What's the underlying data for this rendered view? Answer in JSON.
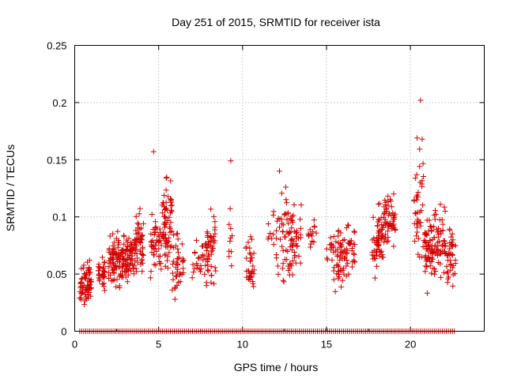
{
  "chart_data": {
    "type": "scatter",
    "title": "Day 251 of 2015, SRMTID for receiver ista",
    "xlabel": "GPS time / hours",
    "ylabel": "SRMTID / TECUs",
    "xlim": [
      0,
      24.4
    ],
    "ylim": [
      0,
      0.25
    ],
    "xticks": [
      0,
      5,
      10,
      15,
      20
    ],
    "yticks": [
      0,
      0.05,
      0.1,
      0.15,
      0.2,
      0.25
    ],
    "xtick_labels": [
      "0",
      "5",
      "10",
      "15",
      "20"
    ],
    "ytick_labels": [
      "0",
      "0.05",
      "0.1",
      "0.15",
      "0.2",
      "0.25"
    ],
    "grid": true,
    "marker": "+",
    "color": "#d40000",
    "series": [
      {
        "name": "SRMTID",
        "clusters": [
          {
            "x": [
              0.3,
              1.0
            ],
            "y": [
              0.015,
              0.068
            ],
            "n": 70
          },
          {
            "x": [
              1.4,
              1.8
            ],
            "y": [
              0.028,
              0.07
            ],
            "n": 35
          },
          {
            "x": [
              2.0,
              2.7
            ],
            "y": [
              0.03,
              0.1
            ],
            "n": 70
          },
          {
            "x": [
              2.7,
              3.5
            ],
            "y": [
              0.035,
              0.095
            ],
            "n": 80
          },
          {
            "x": [
              3.5,
              4.1
            ],
            "y": [
              0.04,
              0.11
            ],
            "n": 60
          },
          {
            "x": [
              4.5,
              5.2
            ],
            "y": [
              0.035,
              0.11
            ],
            "n": 45
          },
          {
            "x": [
              5.2,
              5.8
            ],
            "y": [
              0.04,
              0.145
            ],
            "n": 70
          },
          {
            "x": [
              5.8,
              6.5
            ],
            "y": [
              0.02,
              0.1
            ],
            "n": 40
          },
          {
            "x": [
              7.0,
              7.8
            ],
            "y": [
              0.03,
              0.09
            ],
            "n": 25
          },
          {
            "x": [
              7.8,
              8.4
            ],
            "y": [
              0.025,
              0.117
            ],
            "n": 50
          },
          {
            "x": [
              9.1,
              9.4
            ],
            "y": [
              0.03,
              0.15
            ],
            "n": 10
          },
          {
            "x": [
              10.2,
              10.7
            ],
            "y": [
              0.03,
              0.095
            ],
            "n": 35
          },
          {
            "x": [
              11.5,
              12.3
            ],
            "y": [
              0.04,
              0.12
            ],
            "n": 20
          },
          {
            "x": [
              12.3,
              13.0
            ],
            "y": [
              0.03,
              0.14
            ],
            "n": 55
          },
          {
            "x": [
              13.0,
              13.5
            ],
            "y": [
              0.04,
              0.128
            ],
            "n": 25
          },
          {
            "x": [
              13.9,
              14.4
            ],
            "y": [
              0.06,
              0.105
            ],
            "n": 15
          },
          {
            "x": [
              15.0,
              15.4
            ],
            "y": [
              0.05,
              0.09
            ],
            "n": 10
          },
          {
            "x": [
              15.4,
              16.2
            ],
            "y": [
              0.03,
              0.1
            ],
            "n": 60
          },
          {
            "x": [
              16.2,
              16.7
            ],
            "y": [
              0.04,
              0.1
            ],
            "n": 25
          },
          {
            "x": [
              17.7,
              18.4
            ],
            "y": [
              0.03,
              0.128
            ],
            "n": 60
          },
          {
            "x": [
              18.4,
              19.1
            ],
            "y": [
              0.07,
              0.128
            ],
            "n": 60
          },
          {
            "x": [
              20.2,
              20.8
            ],
            "y": [
              0.04,
              0.17
            ],
            "n": 40
          },
          {
            "x": [
              20.8,
              21.4
            ],
            "y": [
              0.03,
              0.11
            ],
            "n": 60
          },
          {
            "x": [
              21.4,
              22.1
            ],
            "y": [
              0.03,
              0.123
            ],
            "n": 55
          },
          {
            "x": [
              22.1,
              22.7
            ],
            "y": [
              0.035,
              0.1
            ],
            "n": 40
          }
        ],
        "points": [
          {
            "x": 4.7,
            "y": 0.157
          },
          {
            "x": 9.3,
            "y": 0.149
          },
          {
            "x": 12.2,
            "y": 0.14
          },
          {
            "x": 20.6,
            "y": 0.202
          },
          {
            "x": 20.4,
            "y": 0.169
          },
          {
            "x": 20.7,
            "y": 0.168
          }
        ],
        "zero_points": {
          "x": [
            0.3,
            22.7
          ],
          "step": 0.12,
          "y": 0
        }
      }
    ]
  }
}
